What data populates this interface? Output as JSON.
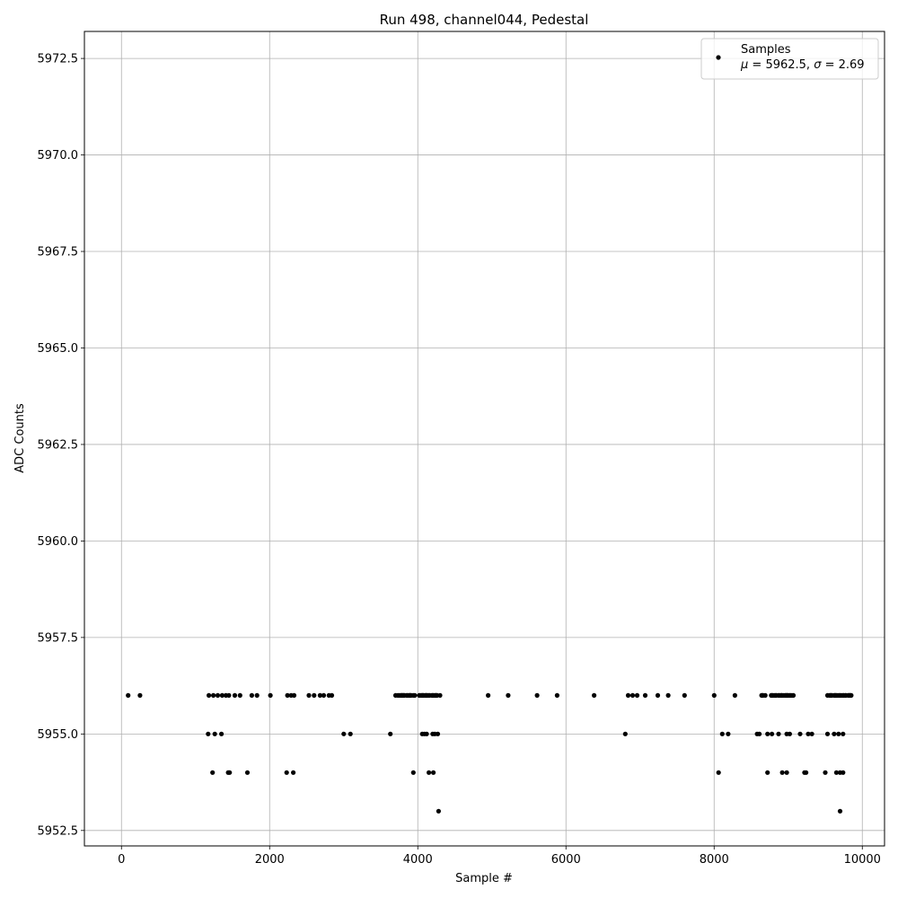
{
  "chart_data": {
    "type": "scatter",
    "title": "Run 498, channel044, Pedestal",
    "xlabel": "Sample #",
    "ylabel": "ADC Counts",
    "xlim": [
      -500,
      10300
    ],
    "ylim": [
      5952.1,
      5973.2
    ],
    "x_ticks": [
      0,
      2000,
      4000,
      6000,
      8000,
      10000
    ],
    "x_tick_labels": [
      "0",
      "2000",
      "4000",
      "6000",
      "8000",
      "10000"
    ],
    "y_ticks": [
      5952.5,
      5955.0,
      5957.5,
      5960.0,
      5962.5,
      5965.0,
      5967.5,
      5970.0,
      5972.5
    ],
    "y_tick_labels": [
      "5952.5",
      "5955.0",
      "5957.5",
      "5960.0",
      "5962.5",
      "5965.0",
      "5967.5",
      "5970.0",
      "5972.5"
    ],
    "grid": true,
    "legend_position": "top-right",
    "marker_color": "#000000",
    "series": [
      {
        "name": "Samples",
        "legend_stats_prefix": "μ = 5962.5, ",
        "legend_stats_sigma": "σ",
        "legend_stats_suffix": " = 2.69",
        "density_levels": [
          {
            "y": 5953,
            "x": [
              4280,
              9700
            ]
          },
          {
            "y": 5954,
            "x": [
              1230,
              1440,
              1460,
              1700,
              2230,
              2320,
              3940,
              4150,
              4210,
              8060,
              8720,
              8920,
              8980,
              9220,
              9240,
              9500,
              9650,
              9700,
              9740
            ]
          },
          {
            "y": 5955,
            "x": [
              1170,
              1260,
              1350,
              3000,
              3090,
              3630,
              4060,
              4090,
              4120,
              4200,
              4230,
              4270,
              6800,
              8110,
              8190,
              8580,
              8610,
              8720,
              8780,
              8870,
              8980,
              9020,
              9160,
              9270,
              9320,
              9530,
              9620,
              9680,
              9740
            ]
          },
          {
            "y": 5956,
            "ranges": [
              [
                3700,
                4300
              ],
              [
                8640,
                9120
              ],
              [
                9530,
                9850
              ]
            ],
            "density": 0.6,
            "x": [
              90,
              250,
              1180,
              1240,
              1300,
              1360,
              1410,
              1450,
              1530,
              1600,
              1760,
              1830,
              2010,
              2240,
              2290,
              2330,
              2530,
              2600,
              2680,
              2730,
              2800,
              2840,
              4950,
              5220,
              5610,
              5880,
              6380,
              6840,
              6900,
              6960,
              7070,
              7240,
              7380,
              7600,
              8000,
              8280
            ]
          }
        ]
      }
    ]
  }
}
